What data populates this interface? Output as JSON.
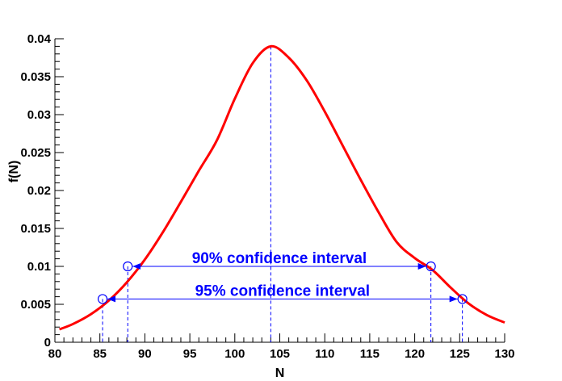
{
  "chart_data": {
    "type": "line",
    "title": "",
    "xlabel": "N",
    "ylabel": "f(N)",
    "xlim": [
      80,
      130
    ],
    "ylim": [
      0,
      0.04
    ],
    "xticks": [
      80,
      85,
      90,
      95,
      100,
      105,
      110,
      115,
      120,
      125,
      130
    ],
    "xtick_labels": [
      "80",
      "85",
      "90",
      "95",
      "100",
      "105",
      "110",
      "115",
      "120",
      "125",
      "130"
    ],
    "yticks": [
      0,
      0.005,
      0.01,
      0.015,
      0.02,
      0.025,
      0.03,
      0.035,
      0.04
    ],
    "ytick_labels": [
      "0",
      "0.005",
      "0.01",
      "0.015",
      "0.02",
      "0.025",
      "0.03",
      "0.035",
      "0.04"
    ],
    "grid": false,
    "series": [
      {
        "color": "#ff0000",
        "x": [
          80.5,
          82,
          84,
          86,
          88,
          90,
          92,
          94,
          96,
          98,
          100,
          102,
          104,
          106,
          108,
          110,
          112,
          114,
          116,
          118,
          120,
          122,
          124,
          126,
          128,
          130
        ],
        "y": [
          0.0017,
          0.0024,
          0.0037,
          0.0055,
          0.0079,
          0.0109,
          0.0145,
          0.0185,
          0.0226,
          0.0266,
          0.0321,
          0.0368,
          0.039,
          0.0375,
          0.0345,
          0.0304,
          0.0259,
          0.0214,
          0.0171,
          0.0132,
          0.0111,
          0.0095,
          0.0072,
          0.0051,
          0.0036,
          0.0026
        ]
      }
    ],
    "mode": {
      "x": 104.0,
      "y": 0.039
    },
    "intervals": [
      {
        "label": "90% confidence interval",
        "x_low": 88.1,
        "x_high": 121.8,
        "y": 0.01
      },
      {
        "label": "95% confidence interval",
        "x_low": 85.3,
        "x_high": 125.3,
        "y": 0.0057
      }
    ],
    "colors": {
      "curve": "#ff0000",
      "annotation": "#0000ff",
      "axis": "#000000"
    }
  }
}
